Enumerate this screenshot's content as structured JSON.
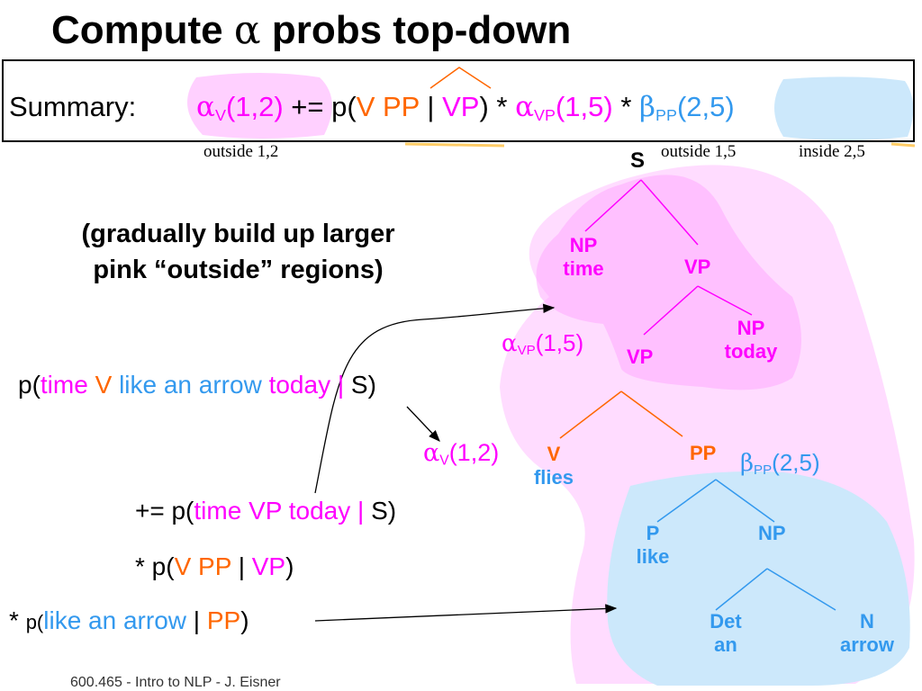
{
  "title": {
    "prefix": "Compute ",
    "alpha": "α",
    "suffix": " probs top-down"
  },
  "summary": {
    "label": "Summary:",
    "alpha": "α",
    "v_sub": "V",
    "span_12": "(1,2)",
    "pluseq_p": " += p(",
    "v": "V",
    "pp": "PP",
    "bar": " | ",
    "vp": "VP",
    "close_star": ") * ",
    "vp_sub": "VP",
    "span_15": "(1,5)",
    "star": " * ",
    "beta": "β",
    "pp_sub": "PP",
    "span_25": "(2,5)"
  },
  "notes": {
    "outside_12": "outside 1,2",
    "outside_15": "outside 1,5",
    "inside_25": "inside 2,5"
  },
  "subheading": {
    "line1": "(gradually build up larger",
    "line2": "pink “outside” regions)"
  },
  "eq1": {
    "p_open": "p(",
    "time": "time",
    "v": "V",
    "like_arrow": "like an arrow",
    "today": "today",
    "bar": "|",
    "s": "S",
    "close": ")"
  },
  "eq2": {
    "prefix": "+= p(",
    "time": "time",
    "vp": "VP",
    "today": "today",
    "bar": "|",
    "s": "S",
    "close": ")"
  },
  "eq3": {
    "prefix": "* p(",
    "v": "V",
    "pp": "PP",
    "bar": "|",
    "vp": "VP",
    "close": ")"
  },
  "eq4": {
    "star": "* ",
    "p_open": "p(",
    "like_arrow": "like an arrow",
    "bar": "|",
    "pp": "PP",
    "close": ")"
  },
  "labels": {
    "alpha_vp": {
      "alpha": "α",
      "sub": "VP",
      "span": "(1,5)"
    },
    "alpha_v": {
      "alpha": "α",
      "sub": "V",
      "span": "(1,2)"
    },
    "beta_pp": {
      "beta": "β",
      "sub": "PP",
      "span": "(2,5)"
    }
  },
  "tree": {
    "s": "S",
    "np_time": {
      "cat": "NP",
      "word": "time"
    },
    "vp_top": "VP",
    "vp_inner": "VP",
    "np_today": {
      "cat": "NP",
      "word": "today"
    },
    "v_flies": {
      "cat": "V",
      "word": "flies"
    },
    "pp": "PP",
    "p_like": {
      "cat": "P",
      "word": "like"
    },
    "np_lower": "NP",
    "det_an": {
      "cat": "Det",
      "word": "an"
    },
    "n_arrow": {
      "cat": "N",
      "word": "arrow"
    }
  },
  "colors": {
    "pink": "#ff00ff",
    "orange": "#ff6600",
    "blue": "#3399ee",
    "pink_region": "#ffccff",
    "blue_region": "#cce8fb"
  },
  "footer": "600.465 - Intro to NLP - J. Eisner"
}
